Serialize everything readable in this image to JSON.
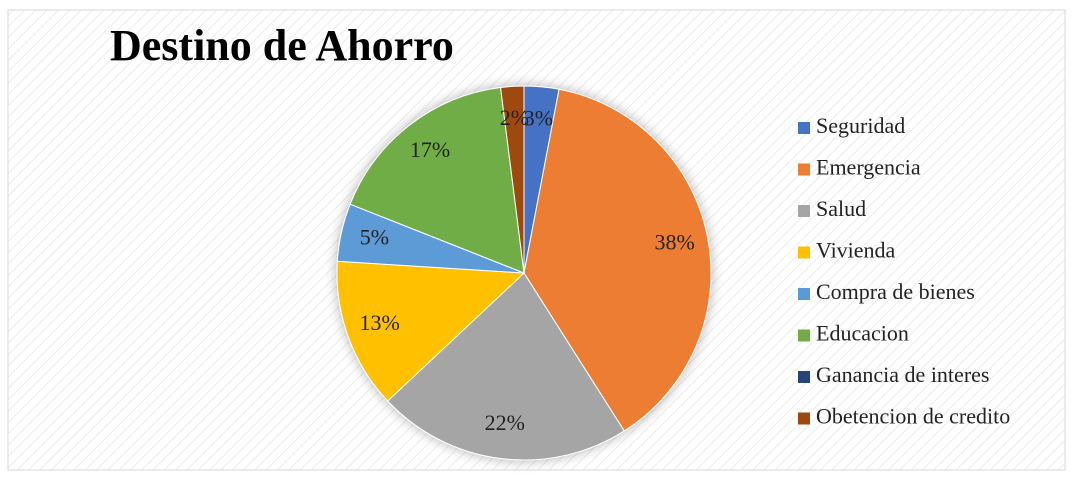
{
  "chart_data": {
    "type": "pie",
    "title": "Destino de Ahorro",
    "categories": [
      "Seguridad",
      "Emergencia",
      "Salud",
      "Vivienda",
      "Compra de bienes",
      "Educacion",
      "Ganancia de interes",
      "Obetencion de credito"
    ],
    "values": [
      3,
      38,
      22,
      13,
      5,
      17,
      0,
      2
    ],
    "value_labels": [
      "3%",
      "38%",
      "22%",
      "13%",
      "5%",
      "17%",
      null,
      "2%"
    ],
    "colors": [
      "#4472c4",
      "#ed7d31",
      "#a5a5a5",
      "#ffc000",
      "#5b9bd5",
      "#70ad47",
      "#264478",
      "#9e480e"
    ],
    "legend": "right"
  }
}
